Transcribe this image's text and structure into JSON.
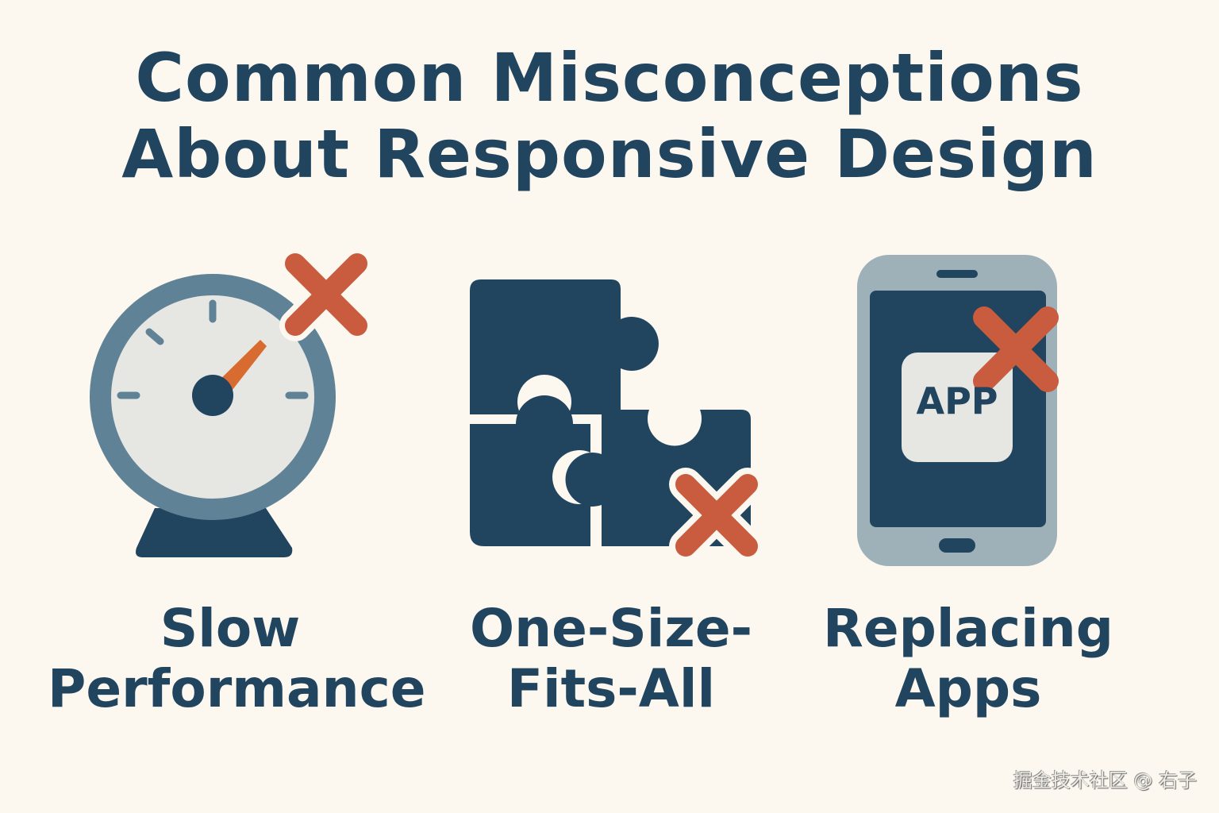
{
  "title": {
    "line1": "Common Misconceptions",
    "line2": "About Responsive Design"
  },
  "colors": {
    "background": "#fcf8f0",
    "navy": "#21445f",
    "cross": "#c95c3e",
    "gauge_ring": "#5f8297",
    "gauge_face": "#e6e6e2",
    "needle": "#d86b30",
    "phone_body": "#9eb0b8",
    "app_tile": "#e6e6e2"
  },
  "items": [
    {
      "icon": "speedometer-icon",
      "label_line1": "Slow",
      "label_line2": "Performance"
    },
    {
      "icon": "puzzle-icon",
      "label_line1": "One-Size-",
      "label_line2": "Fits-All"
    },
    {
      "icon": "smartphone-app-icon",
      "label_line1": "Replacing",
      "label_line2": "Apps",
      "app_text": "APP"
    }
  ],
  "watermark": "掘金技术社区 @ 右子"
}
